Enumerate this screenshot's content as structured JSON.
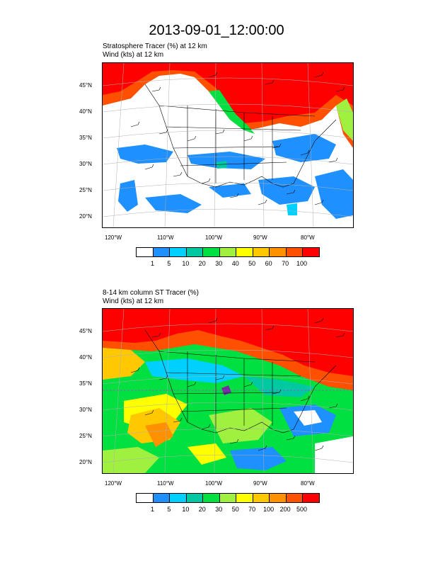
{
  "page_title": "2013-09-01_12:00:00",
  "panels": [
    {
      "subtitle_line1": "Stratosphere Tracer   (%)     at   12 km",
      "subtitle_line2": "Wind   (kts)     at   12 km",
      "lat_labels": [
        "45°N",
        "40°N",
        "35°N",
        "30°N",
        "25°N",
        "20°N"
      ],
      "lon_labels": [
        "120°W",
        "110°W",
        "100°W",
        "90°W",
        "80°W"
      ],
      "colorbar_labels": [
        "1",
        "5",
        "10",
        "20",
        "30",
        "40",
        "50",
        "60",
        "70",
        "100"
      ],
      "colorbar_colors": [
        "#ffffff",
        "#1e90ff",
        "#00d0ff",
        "#00c8a0",
        "#00e040",
        "#a0f040",
        "#ffff00",
        "#ffc800",
        "#ff9000",
        "#ff5000",
        "#ff0000"
      ]
    },
    {
      "subtitle_line1": "8-14 km column ST Tracer   (%)",
      "subtitle_line2": "Wind   (kts)     at   12 km",
      "lat_labels": [
        "45°N",
        "40°N",
        "35°N",
        "30°N",
        "25°N",
        "20°N"
      ],
      "lon_labels": [
        "120°W",
        "110°W",
        "100°W",
        "90°W",
        "80°W"
      ],
      "colorbar_labels": [
        "1",
        "5",
        "10",
        "20",
        "30",
        "50",
        "70",
        "100",
        "200",
        "500"
      ],
      "colorbar_colors": [
        "#ffffff",
        "#1e90ff",
        "#00d0ff",
        "#00c8a0",
        "#00e040",
        "#a0f040",
        "#ffff00",
        "#ffc800",
        "#ff9000",
        "#ff5000",
        "#ff0000"
      ]
    }
  ]
}
